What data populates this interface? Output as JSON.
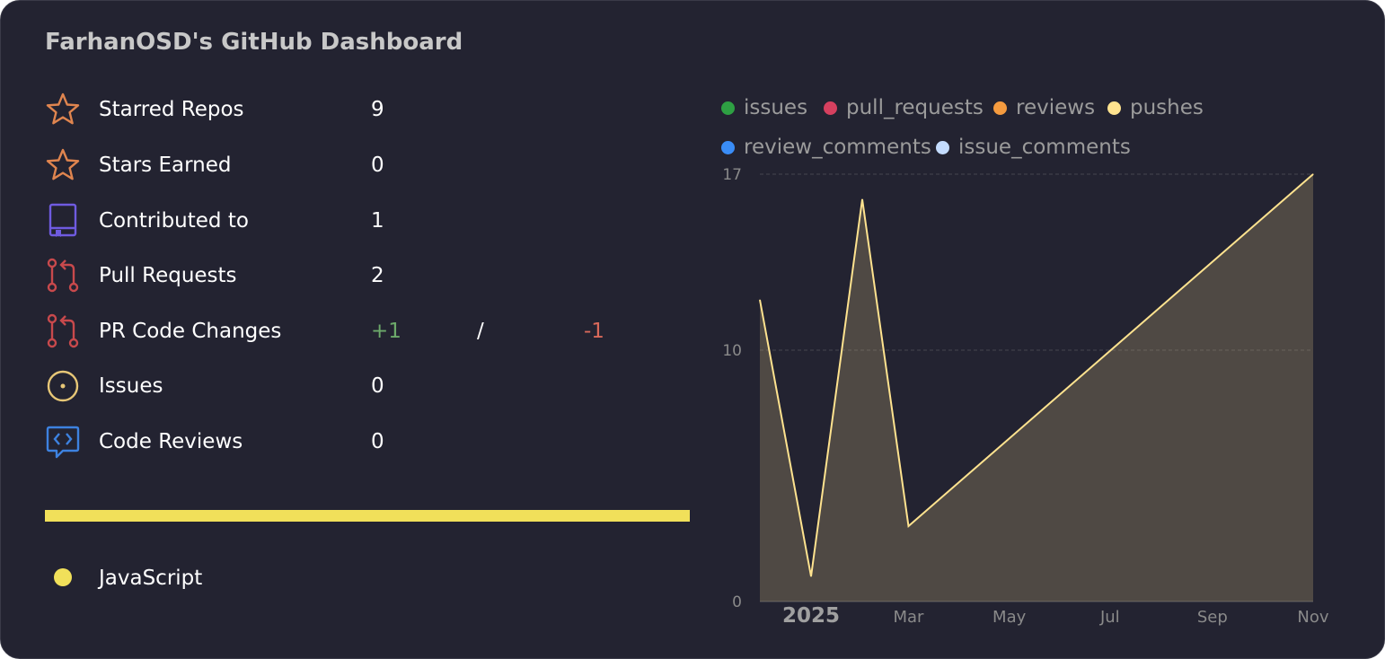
{
  "title": "FarhanOSD's GitHub Dashboard",
  "stats": [
    {
      "label": "Starred Repos",
      "value": "9",
      "icon": "star-icon",
      "color": "#e0854f"
    },
    {
      "label": "Stars Earned",
      "value": "0",
      "icon": "star-icon",
      "color": "#e0854f"
    },
    {
      "label": "Contributed to",
      "value": "1",
      "icon": "repo-icon",
      "color": "#6f5be0"
    },
    {
      "label": "Pull Requests",
      "value": "2",
      "icon": "git-pull-request-icon",
      "color": "#c8494c"
    },
    {
      "label": "PR Code Changes",
      "additions": "+1",
      "separator": "/",
      "deletions": "-1",
      "icon": "git-pull-request-icon",
      "color": "#c8494c"
    },
    {
      "label": "Issues",
      "value": "0",
      "icon": "issue-icon",
      "color": "#e7c777"
    },
    {
      "label": "Code Reviews",
      "value": "0",
      "icon": "code-review-icon",
      "color": "#3d82e0"
    }
  ],
  "languages": [
    {
      "name": "JavaScript",
      "color": "#f1e05a",
      "share": 1.0
    }
  ],
  "chart_data": {
    "type": "area",
    "title": "",
    "xlabel": "",
    "ylabel": "",
    "legend_position": "top",
    "grid": true,
    "x": [
      "2024-12-01",
      "2025-01-01",
      "2025-02-01",
      "2025-03-01",
      "2025-11-01"
    ],
    "x_ticks": [
      "2025",
      "Mar",
      "May",
      "Jul",
      "Sep",
      "Nov"
    ],
    "ylim": [
      0,
      17
    ],
    "y_ticks": [
      0,
      10,
      17
    ],
    "series": [
      {
        "name": "issues",
        "color": "#2ea043",
        "values": [
          0,
          0,
          0,
          0,
          0
        ]
      },
      {
        "name": "pull_requests",
        "color": "#d6405f",
        "values": [
          0,
          0,
          0,
          0,
          0
        ]
      },
      {
        "name": "reviews",
        "color": "#f59b3f",
        "values": [
          0,
          0,
          0,
          0,
          0
        ]
      },
      {
        "name": "pushes",
        "color": "#ffe38f",
        "values": [
          12,
          1,
          16,
          3,
          17
        ]
      },
      {
        "name": "review_comments",
        "color": "#3a8df7",
        "values": [
          0,
          0,
          0,
          0,
          0
        ]
      },
      {
        "name": "issue_comments",
        "color": "#c4dcff",
        "values": [
          0,
          0,
          0,
          0,
          0
        ]
      }
    ]
  }
}
